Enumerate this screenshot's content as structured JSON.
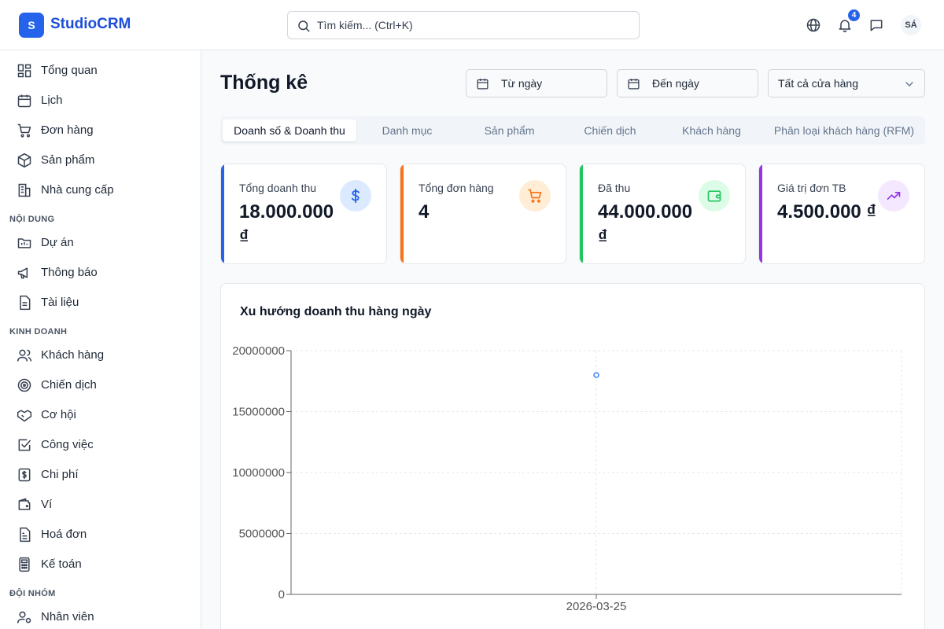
{
  "header": {
    "logo_letter": "S",
    "app_name": "StudioCRM",
    "search_placeholder": "Tìm kiếm... (Ctrl+K)",
    "notification_count": "4",
    "avatar_initials": "SÁ"
  },
  "sidebar": {
    "items": [
      {
        "label": "Tổng quan",
        "icon": "grid-icon"
      },
      {
        "label": "Lịch",
        "icon": "calendar-icon"
      },
      {
        "label": "Đơn hàng",
        "icon": "cart-icon"
      },
      {
        "label": "Sản phẩm",
        "icon": "package-icon"
      },
      {
        "label": "Nhà cung cấp",
        "icon": "building-icon"
      }
    ],
    "sections": [
      {
        "title": "NỘI DUNG",
        "items": [
          {
            "label": "Dự án",
            "icon": "folder-icon"
          },
          {
            "label": "Thông báo",
            "icon": "megaphone-icon"
          },
          {
            "label": "Tài liệu",
            "icon": "file-icon"
          }
        ]
      },
      {
        "title": "KINH DOANH",
        "items": [
          {
            "label": "Khách hàng",
            "icon": "users-icon"
          },
          {
            "label": "Chiến dịch",
            "icon": "target-icon"
          },
          {
            "label": "Cơ hội",
            "icon": "handshake-icon"
          },
          {
            "label": "Công việc",
            "icon": "check-square-icon"
          },
          {
            "label": "Chi phí",
            "icon": "dollar-icon"
          },
          {
            "label": "Ví",
            "icon": "wallet-icon"
          },
          {
            "label": "Hoá đơn",
            "icon": "invoice-icon"
          },
          {
            "label": "Kế toán",
            "icon": "calculator-icon"
          }
        ]
      },
      {
        "title": "ĐỘI NHÓM",
        "items": [
          {
            "label": "Nhân viên",
            "icon": "user-cog-icon"
          }
        ]
      }
    ]
  },
  "main": {
    "title": "Thống kê",
    "from_date": "Từ ngày",
    "to_date": "Đến ngày",
    "store_select": "Tất cả cửa hàng",
    "tabs": [
      {
        "label": "Doanh số & Doanh thu",
        "active": true
      },
      {
        "label": "Danh mục",
        "active": false
      },
      {
        "label": "Sản phẩm",
        "active": false
      },
      {
        "label": "Chiến dịch",
        "active": false
      },
      {
        "label": "Khách hàng",
        "active": false
      },
      {
        "label": "Phân loại khách hàng (RFM)",
        "active": false
      }
    ],
    "stats": [
      {
        "title": "Tổng doanh thu",
        "value": "18.000.000 ₫",
        "color": "#2563eb",
        "bg": "#dbeafe",
        "icon": "dollar-icon"
      },
      {
        "title": "Tổng đơn hàng",
        "value": "4",
        "color": "#f97316",
        "bg": "#ffedd5",
        "icon": "cart-icon"
      },
      {
        "title": "Đã thu",
        "value": "44.000.000 ₫",
        "color": "#22c55e",
        "bg": "#dcfce7",
        "icon": "wallet-icon"
      },
      {
        "title": "Giá trị đơn TB",
        "value": "4.500.000 ₫",
        "color": "#9333ea",
        "bg": "#f3e8ff",
        "icon": "trending-up-icon"
      }
    ],
    "chart_title": "Xu hướng doanh thu hàng ngày"
  },
  "chart_data": {
    "type": "line",
    "title": "Xu hướng doanh thu hàng ngày",
    "x": [
      "2026-03-25"
    ],
    "series": [
      {
        "values": [
          18000000
        ]
      }
    ],
    "y_tick_labels": [
      "0",
      "5000000",
      "10000000",
      "15000000",
      "20000000"
    ],
    "ylim": [
      0,
      20000000
    ],
    "grid": true,
    "point_color": "#3b82f6"
  }
}
